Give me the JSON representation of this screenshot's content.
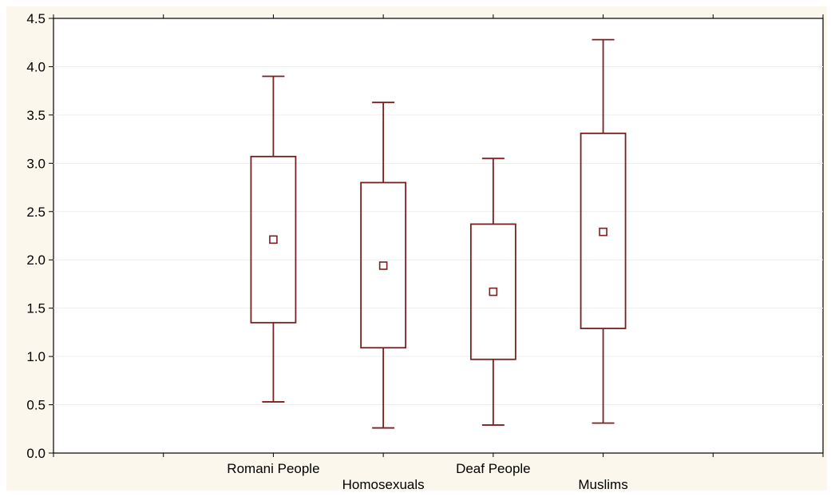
{
  "chart_data": {
    "type": "boxplot",
    "title": "",
    "xlabel": "",
    "ylabel": "",
    "ylim": [
      0,
      4.5
    ],
    "yticks": [
      "0.0",
      "0.5",
      "1.0",
      "1.5",
      "2.0",
      "2.5",
      "3.0",
      "3.5",
      "4.0",
      "4.5"
    ],
    "grid": "horizontal-faint",
    "colors": {
      "box": "#7a1f1f",
      "background": "#fbf7ec",
      "plot": "#ffffff"
    },
    "categories": [
      "Romani People",
      "Homosexuals",
      "Deaf People",
      "Muslims"
    ],
    "boxes": [
      {
        "category": "Romani People",
        "whisker_low": 0.53,
        "box_low": 1.35,
        "center": 2.21,
        "box_high": 3.07,
        "whisker_high": 3.9
      },
      {
        "category": "Homosexuals",
        "whisker_low": 0.26,
        "box_low": 1.09,
        "center": 1.94,
        "box_high": 2.8,
        "whisker_high": 3.63
      },
      {
        "category": "Deaf People",
        "whisker_low": 0.29,
        "box_low": 0.97,
        "center": 1.67,
        "box_high": 2.37,
        "whisker_high": 3.05
      },
      {
        "category": "Muslims",
        "whisker_low": 0.31,
        "box_low": 1.29,
        "center": 2.29,
        "box_high": 3.31,
        "whisker_high": 4.28
      }
    ]
  }
}
